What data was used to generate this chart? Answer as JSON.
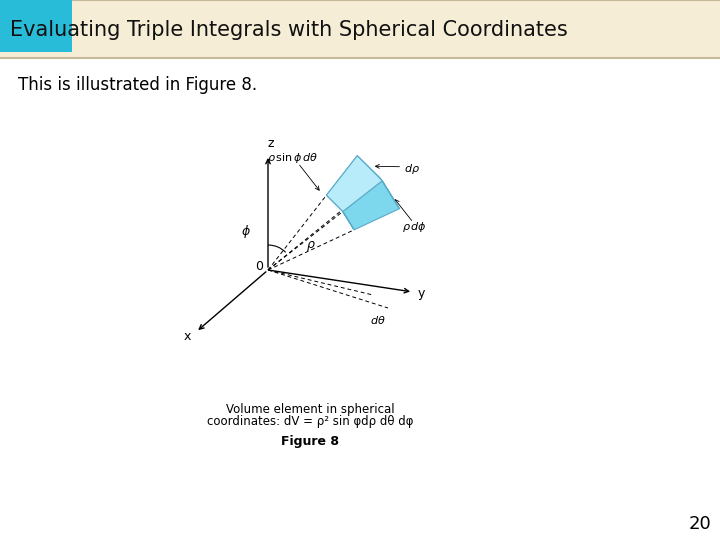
{
  "title": "Evaluating Triple Integrals with Spherical Coordinates",
  "subtitle": "This is illustrated in Figure 8.",
  "title_bg_color": "#F5EDD6",
  "title_text_color": "#111111",
  "blue_box_color": "#29BCD8",
  "main_bg_color": "#FFFFFF",
  "figure_caption_line1": "Volume element in spherical",
  "figure_caption_line2": "coordinates: dV = ρ² sin φdρ dθ dφ",
  "figure_label": "Figure 8",
  "page_number": "20",
  "body_text_color": "#000000",
  "caption_font_size": 8.5,
  "figure_label_font_size": 9,
  "page_num_font_size": 13,
  "title_fontsize": 15,
  "subtitle_fontsize": 12
}
